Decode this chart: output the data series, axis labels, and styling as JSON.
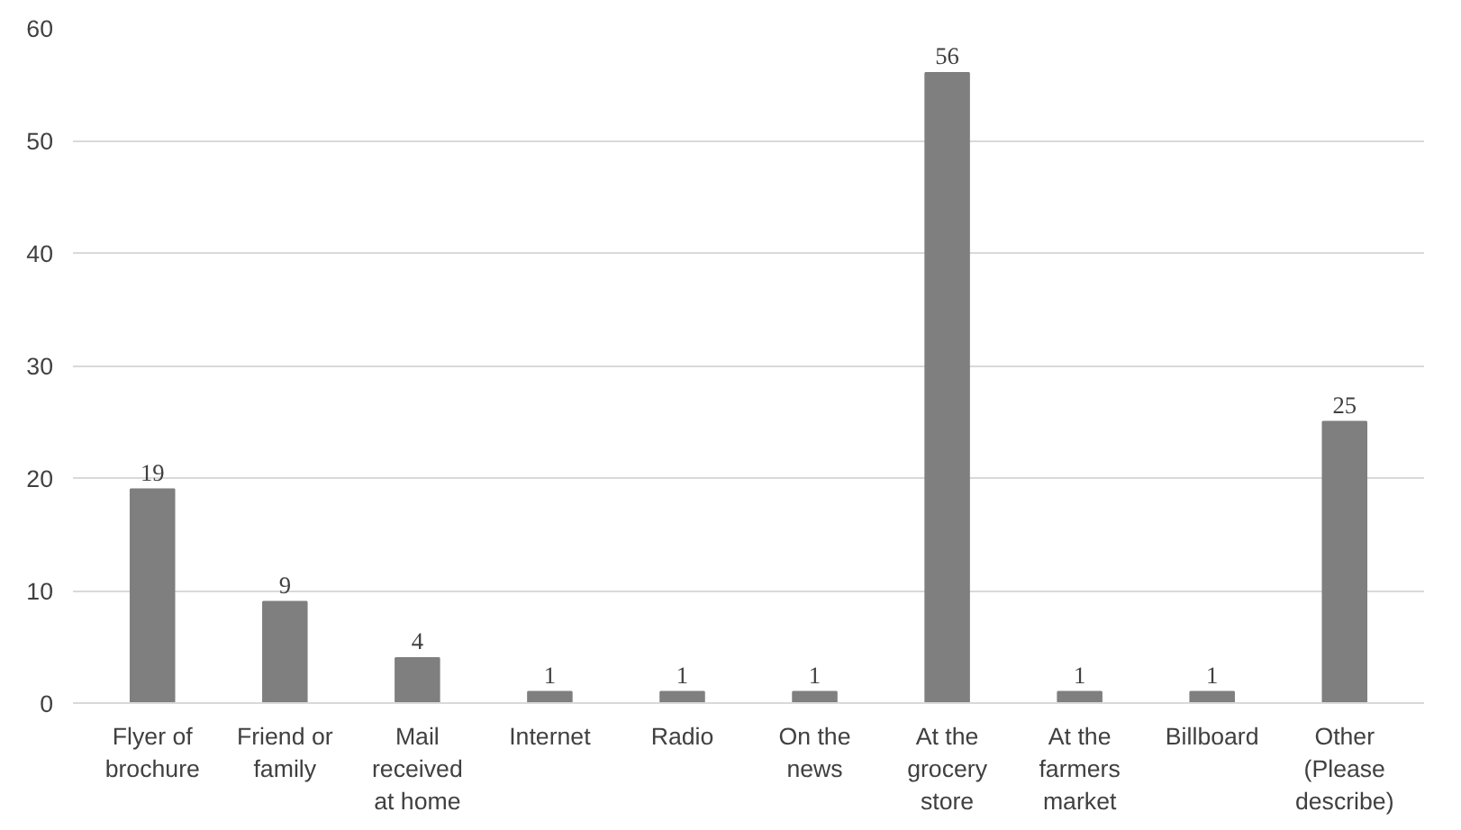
{
  "chart_data": {
    "type": "bar",
    "categories": [
      "Flyer of brochure",
      "Friend or family",
      "Mail received at home",
      "Internet",
      "Radio",
      "On the news",
      "At the grocery store",
      "At the farmers market",
      "Billboard",
      "Other (Please describe)"
    ],
    "values": [
      19,
      9,
      4,
      1,
      1,
      1,
      56,
      1,
      1,
      25
    ],
    "color": "#7f7f7f",
    "ylim": [
      0,
      60
    ],
    "yticks": [
      0,
      10,
      20,
      30,
      40,
      50,
      60
    ],
    "grid": "y",
    "data_labels": true
  }
}
